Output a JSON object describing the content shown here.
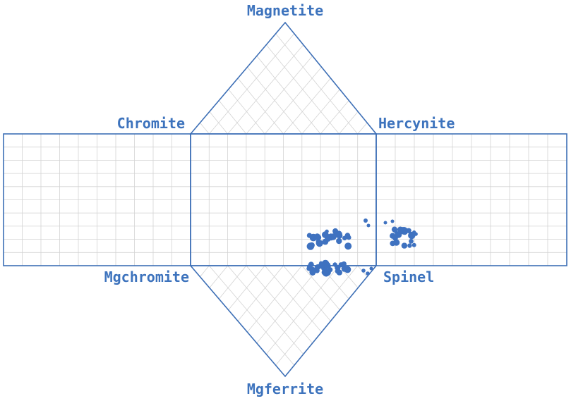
{
  "title": "",
  "labels": {
    "top": "Magnetite",
    "upper_left": "Chromite",
    "upper_right": "Hercynite",
    "lower_left": "Mgchromite",
    "lower_right": "Spinel",
    "bottom": "Mgferrite"
  },
  "colors": {
    "frame": "#3d6fb6",
    "label": "#3d73bd",
    "grid": "#d3d3d3",
    "points": "#3f72c0"
  },
  "chart_data": {
    "type": "scatter",
    "description_of_axes": "Spinel prism diagram: Cr/(Cr+Al) horizontal, Fe2+/(Fe2++Mg) vertical, Fe3+ triangles",
    "grid": true,
    "clusters": [
      {
        "region": "central-square",
        "count": 30
      },
      {
        "region": "right-rectangle",
        "count": 25
      },
      {
        "region": "central-square-base",
        "count": 35
      }
    ]
  }
}
